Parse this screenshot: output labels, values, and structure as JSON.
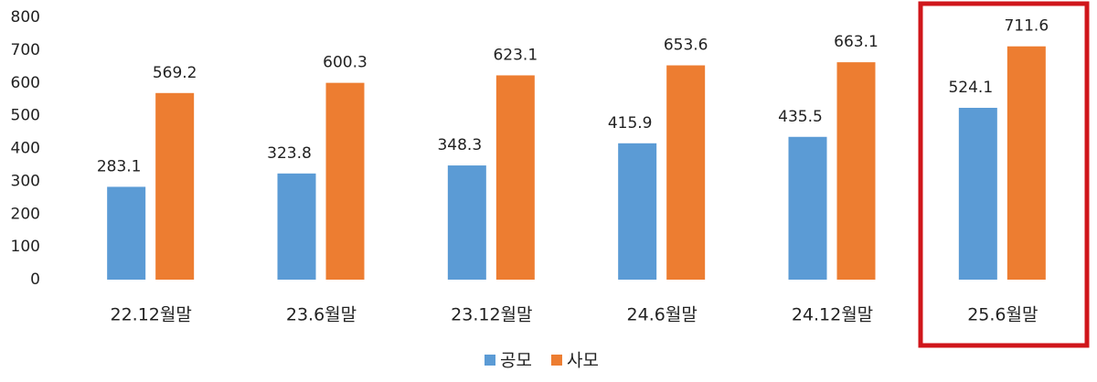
{
  "chart_data": {
    "type": "bar",
    "categories": [
      "22.12월말",
      "23.6월말",
      "23.12월말",
      "24.6월말",
      "24.12월말",
      "25.6월말"
    ],
    "series": [
      {
        "name": "공모",
        "color": "#5b9bd5",
        "values": [
          283.1,
          323.8,
          348.3,
          415.9,
          435.5,
          524.1
        ]
      },
      {
        "name": "사모",
        "color": "#ed7d31",
        "values": [
          569.2,
          600.3,
          623.1,
          653.6,
          663.1,
          711.6
        ]
      }
    ],
    "ylim": [
      0,
      800
    ],
    "yticks": [
      0,
      100,
      200,
      300,
      400,
      500,
      600,
      700,
      800
    ],
    "grid": false,
    "legend": "bottom"
  }
}
